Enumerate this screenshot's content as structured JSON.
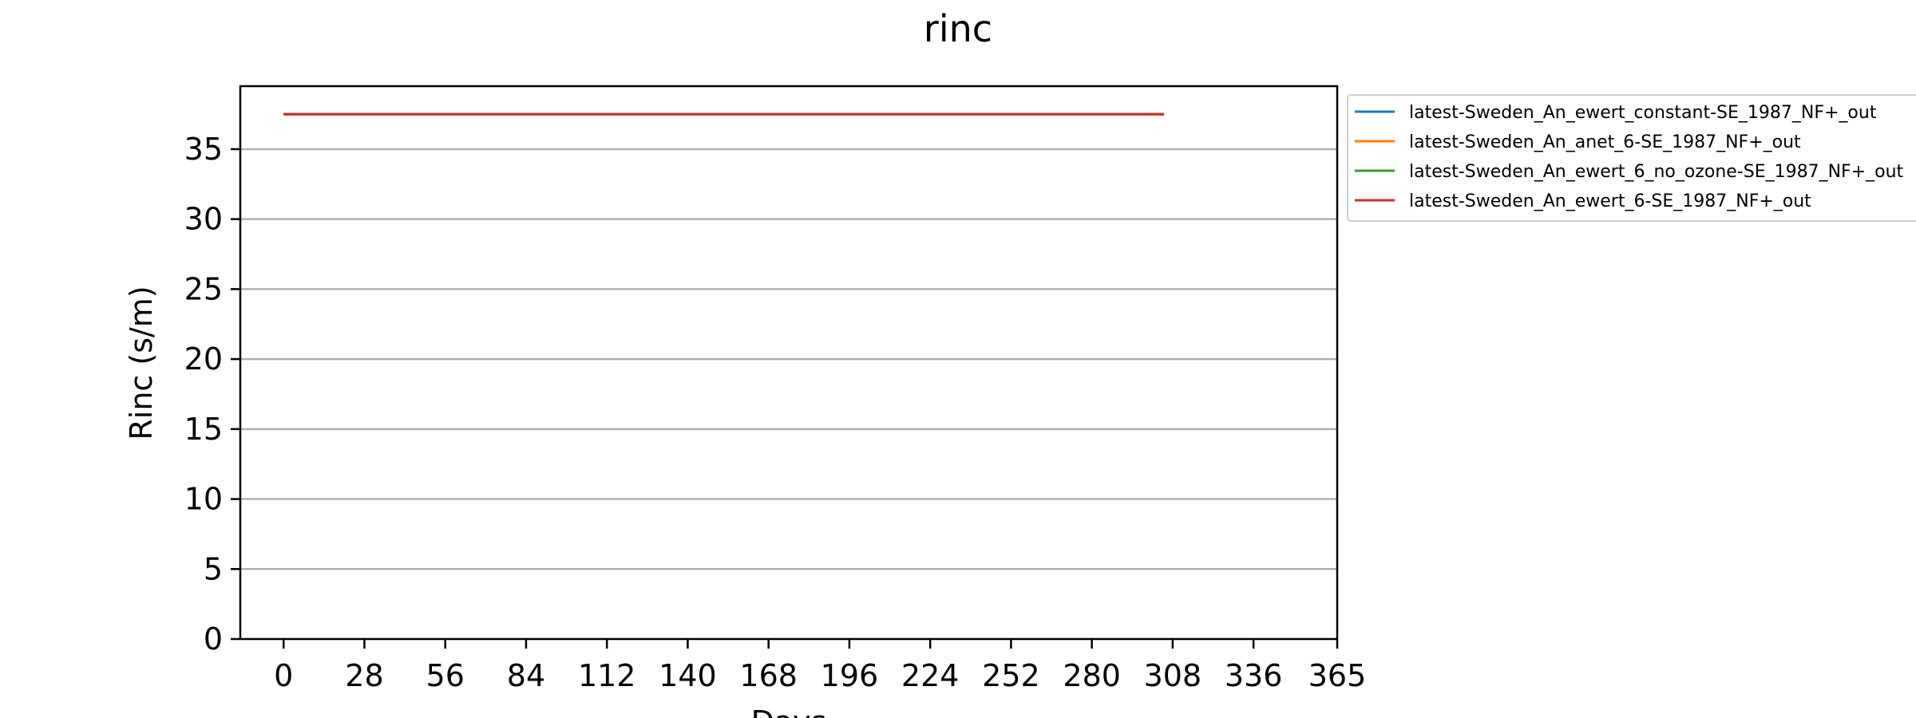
{
  "chart_data": {
    "type": "line",
    "title": "rinc",
    "xlabel": "Days",
    "ylabel": "Rinc (s/m)",
    "xlim": [
      -15,
      365
    ],
    "ylim": [
      0,
      39.5
    ],
    "xticks": [
      0,
      28,
      56,
      84,
      112,
      140,
      168,
      196,
      224,
      252,
      280,
      308,
      336,
      365
    ],
    "yticks": [
      0,
      5,
      10,
      15,
      20,
      25,
      30,
      35
    ],
    "grid": "horizontal",
    "legend_position": "outside-right",
    "series": [
      {
        "name": "latest-Sweden_An_ewert_constant-SE_1987_NF+_out",
        "color": "#1f77b4",
        "x": [
          0,
          305
        ],
        "y": [
          37.5,
          37.5
        ]
      },
      {
        "name": "latest-Sweden_An_anet_6-SE_1987_NF+_out",
        "color": "#ff7f0e",
        "x": [
          0,
          305
        ],
        "y": [
          37.5,
          37.5
        ]
      },
      {
        "name": "latest-Sweden_An_ewert_6_no_ozone-SE_1987_NF+_out",
        "color": "#2ca02c",
        "x": [
          0,
          305
        ],
        "y": [
          37.5,
          37.5
        ]
      },
      {
        "name": "latest-Sweden_An_ewert_6-SE_1987_NF+_out",
        "color": "#d62728",
        "x": [
          0,
          305
        ],
        "y": [
          37.5,
          37.5
        ]
      }
    ]
  }
}
